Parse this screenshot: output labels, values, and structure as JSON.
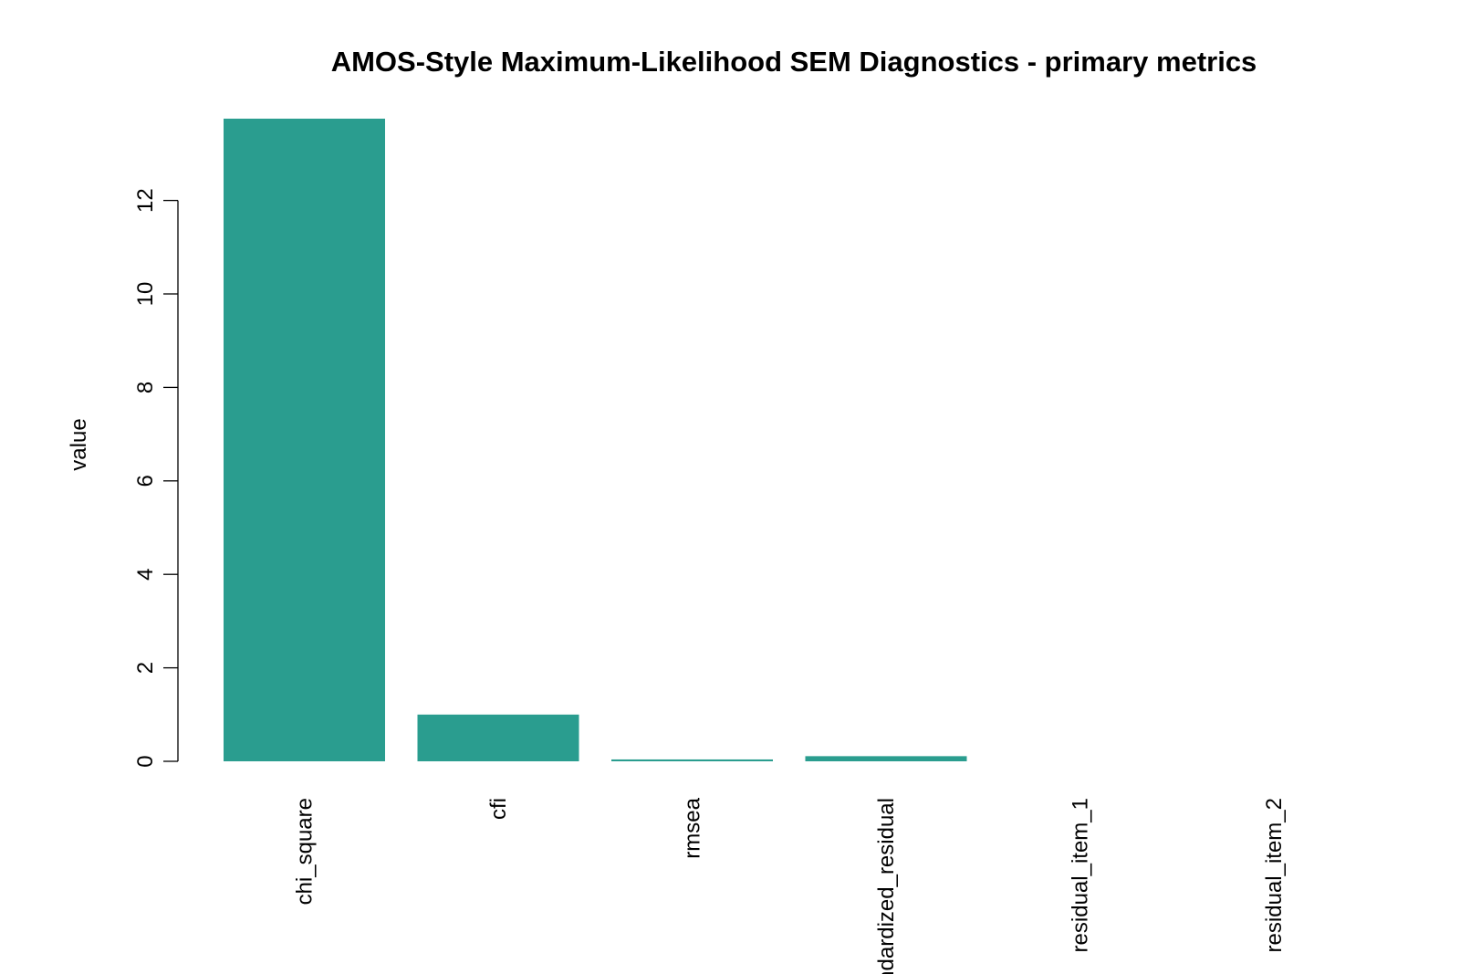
{
  "chart_data": {
    "type": "bar",
    "title": "AMOS-Style Maximum-Likelihood SEM Diagnostics - primary metrics",
    "xlabel": "",
    "ylabel": "value",
    "categories": [
      "chi_square",
      "cfi",
      "rmsea",
      "standardized_residual",
      "residual_item_1",
      "residual_item_2"
    ],
    "values": [
      13.75,
      1.0,
      0.04,
      0.11,
      0.0,
      0.0
    ],
    "y_ticks": [
      0,
      2,
      4,
      6,
      8,
      10,
      12
    ],
    "ylim": [
      0,
      13.75
    ],
    "grid": false,
    "legend": "none",
    "bar_color": "#2a9d8f"
  }
}
